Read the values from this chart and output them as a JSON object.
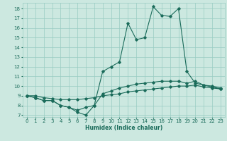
{
  "xlabel": "Humidex (Indice chaleur)",
  "bg_color": "#cce8e0",
  "grid_color": "#99ccc2",
  "line_color": "#1a6b5a",
  "xlim": [
    -0.5,
    23.5
  ],
  "ylim": [
    6.8,
    18.6
  ],
  "yticks": [
    7,
    8,
    9,
    10,
    11,
    12,
    13,
    14,
    15,
    16,
    17,
    18
  ],
  "xticks": [
    0,
    1,
    2,
    3,
    4,
    5,
    6,
    7,
    8,
    9,
    10,
    11,
    12,
    13,
    14,
    15,
    16,
    17,
    18,
    19,
    20,
    21,
    22,
    23
  ],
  "lines": [
    {
      "x": [
        0,
        1,
        2,
        3,
        4,
        5,
        6,
        7,
        8,
        9,
        10,
        11,
        12,
        13,
        14,
        15,
        16,
        17,
        18,
        19,
        20,
        21,
        22,
        23
      ],
      "y": [
        9.0,
        8.8,
        8.5,
        8.5,
        8.0,
        7.8,
        7.3,
        7.0,
        8.0,
        11.5,
        12.0,
        12.5,
        16.5,
        14.8,
        15.0,
        18.2,
        17.3,
        17.2,
        18.0,
        11.5,
        10.3,
        10.1,
        9.9,
        9.7
      ]
    },
    {
      "x": [
        0,
        1,
        2,
        3,
        4,
        5,
        6,
        7,
        8,
        9,
        10,
        11,
        12,
        13,
        14,
        15,
        16,
        17,
        18,
        19,
        20,
        21,
        22,
        23
      ],
      "y": [
        9.0,
        8.8,
        8.5,
        8.5,
        8.0,
        7.8,
        7.5,
        7.8,
        8.0,
        9.2,
        9.5,
        9.8,
        10.0,
        10.2,
        10.3,
        10.4,
        10.5,
        10.5,
        10.5,
        10.3,
        10.5,
        10.1,
        10.0,
        9.8
      ]
    },
    {
      "x": [
        0,
        1,
        2,
        3,
        4,
        5,
        6,
        7,
        8,
        9,
        10,
        11,
        12,
        13,
        14,
        15,
        16,
        17,
        18,
        19,
        20,
        21,
        22,
        23
      ],
      "y": [
        9.0,
        9.0,
        8.8,
        8.7,
        8.6,
        8.6,
        8.6,
        8.7,
        8.8,
        9.0,
        9.1,
        9.2,
        9.4,
        9.5,
        9.6,
        9.7,
        9.8,
        9.9,
        10.0,
        10.0,
        10.1,
        9.9,
        9.8,
        9.7
      ]
    }
  ]
}
